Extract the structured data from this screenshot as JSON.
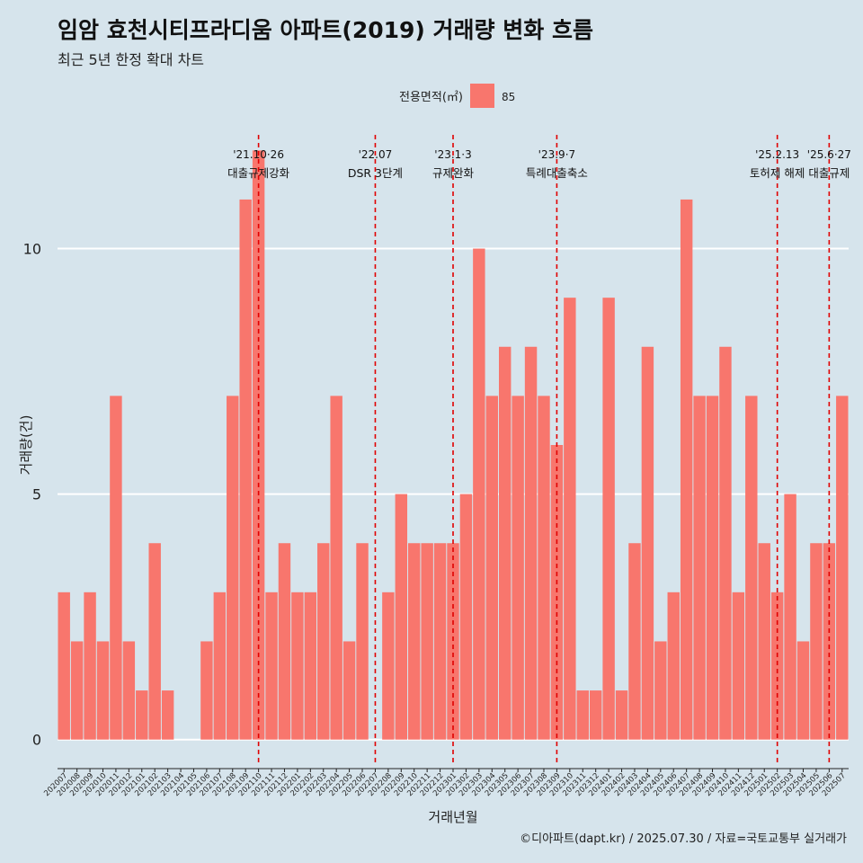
{
  "title": "임암 효천시티프라디움 아파트(2019) 거래량 변화 흐름",
  "subtitle": "최근 5년 한정 확대 차트",
  "caption": "©디아파트(dapt.kr) / 2025.07.30 / 자료=국토교통부 실거래가",
  "colors": {
    "background": "#d6e4ec",
    "bar": "#f8766d",
    "gridline": "#ffffff",
    "event_line": "#e00000"
  },
  "chart_data": {
    "type": "bar",
    "xlabel": "거래년월",
    "ylabel": "거래량(건)",
    "ylim": [
      -0.5,
      12.5
    ],
    "yticks": [
      0,
      5,
      10
    ],
    "grid": true,
    "legend": {
      "title": "전용면적(㎡)",
      "position": "top",
      "items": [
        "85"
      ]
    },
    "categories": [
      "202007",
      "202008",
      "202009",
      "202010",
      "202011",
      "202012",
      "202101",
      "202102",
      "202103",
      "202104",
      "202105",
      "202106",
      "202107",
      "202108",
      "202109",
      "202110",
      "202111",
      "202112",
      "202201",
      "202202",
      "202203",
      "202204",
      "202205",
      "202206",
      "202207",
      "202208",
      "202209",
      "202210",
      "202211",
      "202212",
      "202301",
      "202302",
      "202303",
      "202304",
      "202305",
      "202306",
      "202307",
      "202308",
      "202309",
      "202310",
      "202311",
      "202312",
      "202401",
      "202402",
      "202403",
      "202404",
      "202405",
      "202406",
      "202407",
      "202408",
      "202409",
      "202410",
      "202411",
      "202412",
      "202501",
      "202502",
      "202503",
      "202504",
      "202505",
      "202506",
      "202507"
    ],
    "series": [
      {
        "name": "85",
        "values": [
          3,
          2,
          3,
          2,
          7,
          2,
          1,
          4,
          1,
          0,
          0,
          2,
          3,
          7,
          11,
          12,
          3,
          4,
          3,
          3,
          4,
          7,
          2,
          4,
          0,
          3,
          5,
          4,
          4,
          4,
          4,
          5,
          10,
          7,
          8,
          7,
          8,
          7,
          6,
          9,
          1,
          1,
          9,
          1,
          4,
          8,
          2,
          3,
          11,
          7,
          7,
          8,
          3,
          7,
          4,
          3,
          5,
          2,
          4,
          4,
          7
        ]
      }
    ],
    "annotations": [
      {
        "category": "202110",
        "line1": "'21.10·26",
        "line2": "대출규제강화"
      },
      {
        "category": "202207",
        "line1": "'22.07",
        "line2": "DSR 3단계"
      },
      {
        "category": "202301",
        "line1": "'23.1·3",
        "line2": "규제완화"
      },
      {
        "category": "202309",
        "line1": "'23.9·7",
        "line2": "특례대출축소"
      },
      {
        "category": "202502",
        "line1": "'25.2.13",
        "line2": "토허제 해제"
      },
      {
        "category": "202506",
        "line1": "'25.6·27",
        "line2": "대출규제"
      }
    ]
  }
}
